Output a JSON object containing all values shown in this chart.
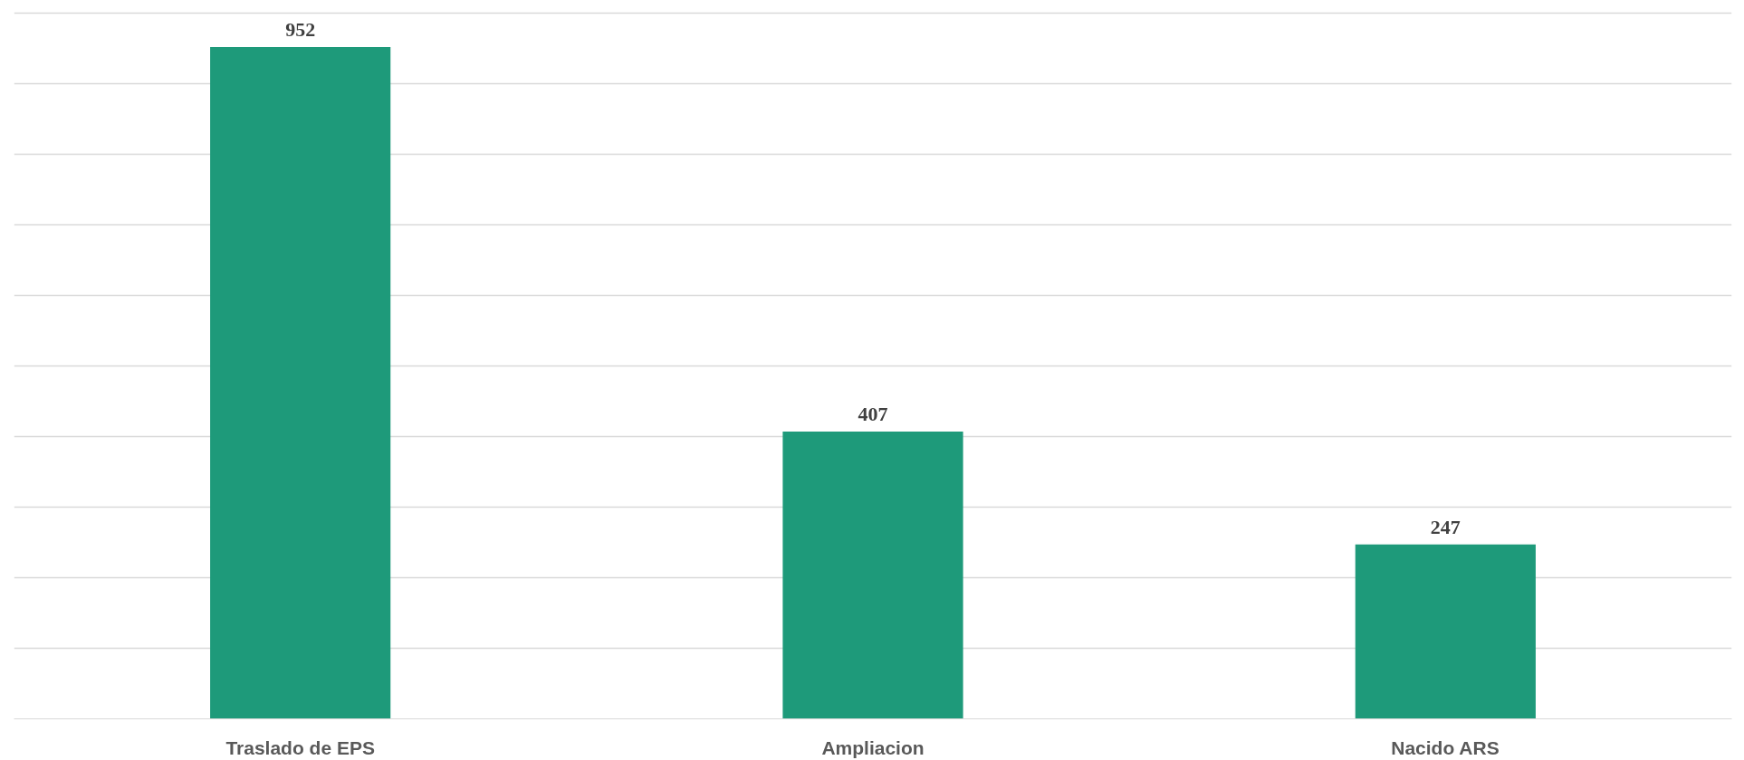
{
  "chart_data": {
    "type": "bar",
    "categories": [
      "Traslado de EPS",
      "Ampliacion",
      "Nacido ARS"
    ],
    "values": [
      952,
      407,
      247
    ],
    "color": "#1e9a7a",
    "data_labels": true,
    "yticks": [
      {
        "value": 0,
        "label": null
      },
      {
        "value": 100,
        "label": null
      },
      {
        "value": 200,
        "label": null
      },
      {
        "value": 300,
        "label": null
      },
      {
        "value": 400,
        "label": null
      },
      {
        "value": 500,
        "label": null
      },
      {
        "value": 600,
        "label": null
      },
      {
        "value": 700,
        "label": null
      },
      {
        "value": 800,
        "label": null
      },
      {
        "value": 900,
        "label": null
      },
      {
        "value": 1000,
        "label": null
      }
    ],
    "grid": "y",
    "tick_labels": "x"
  }
}
